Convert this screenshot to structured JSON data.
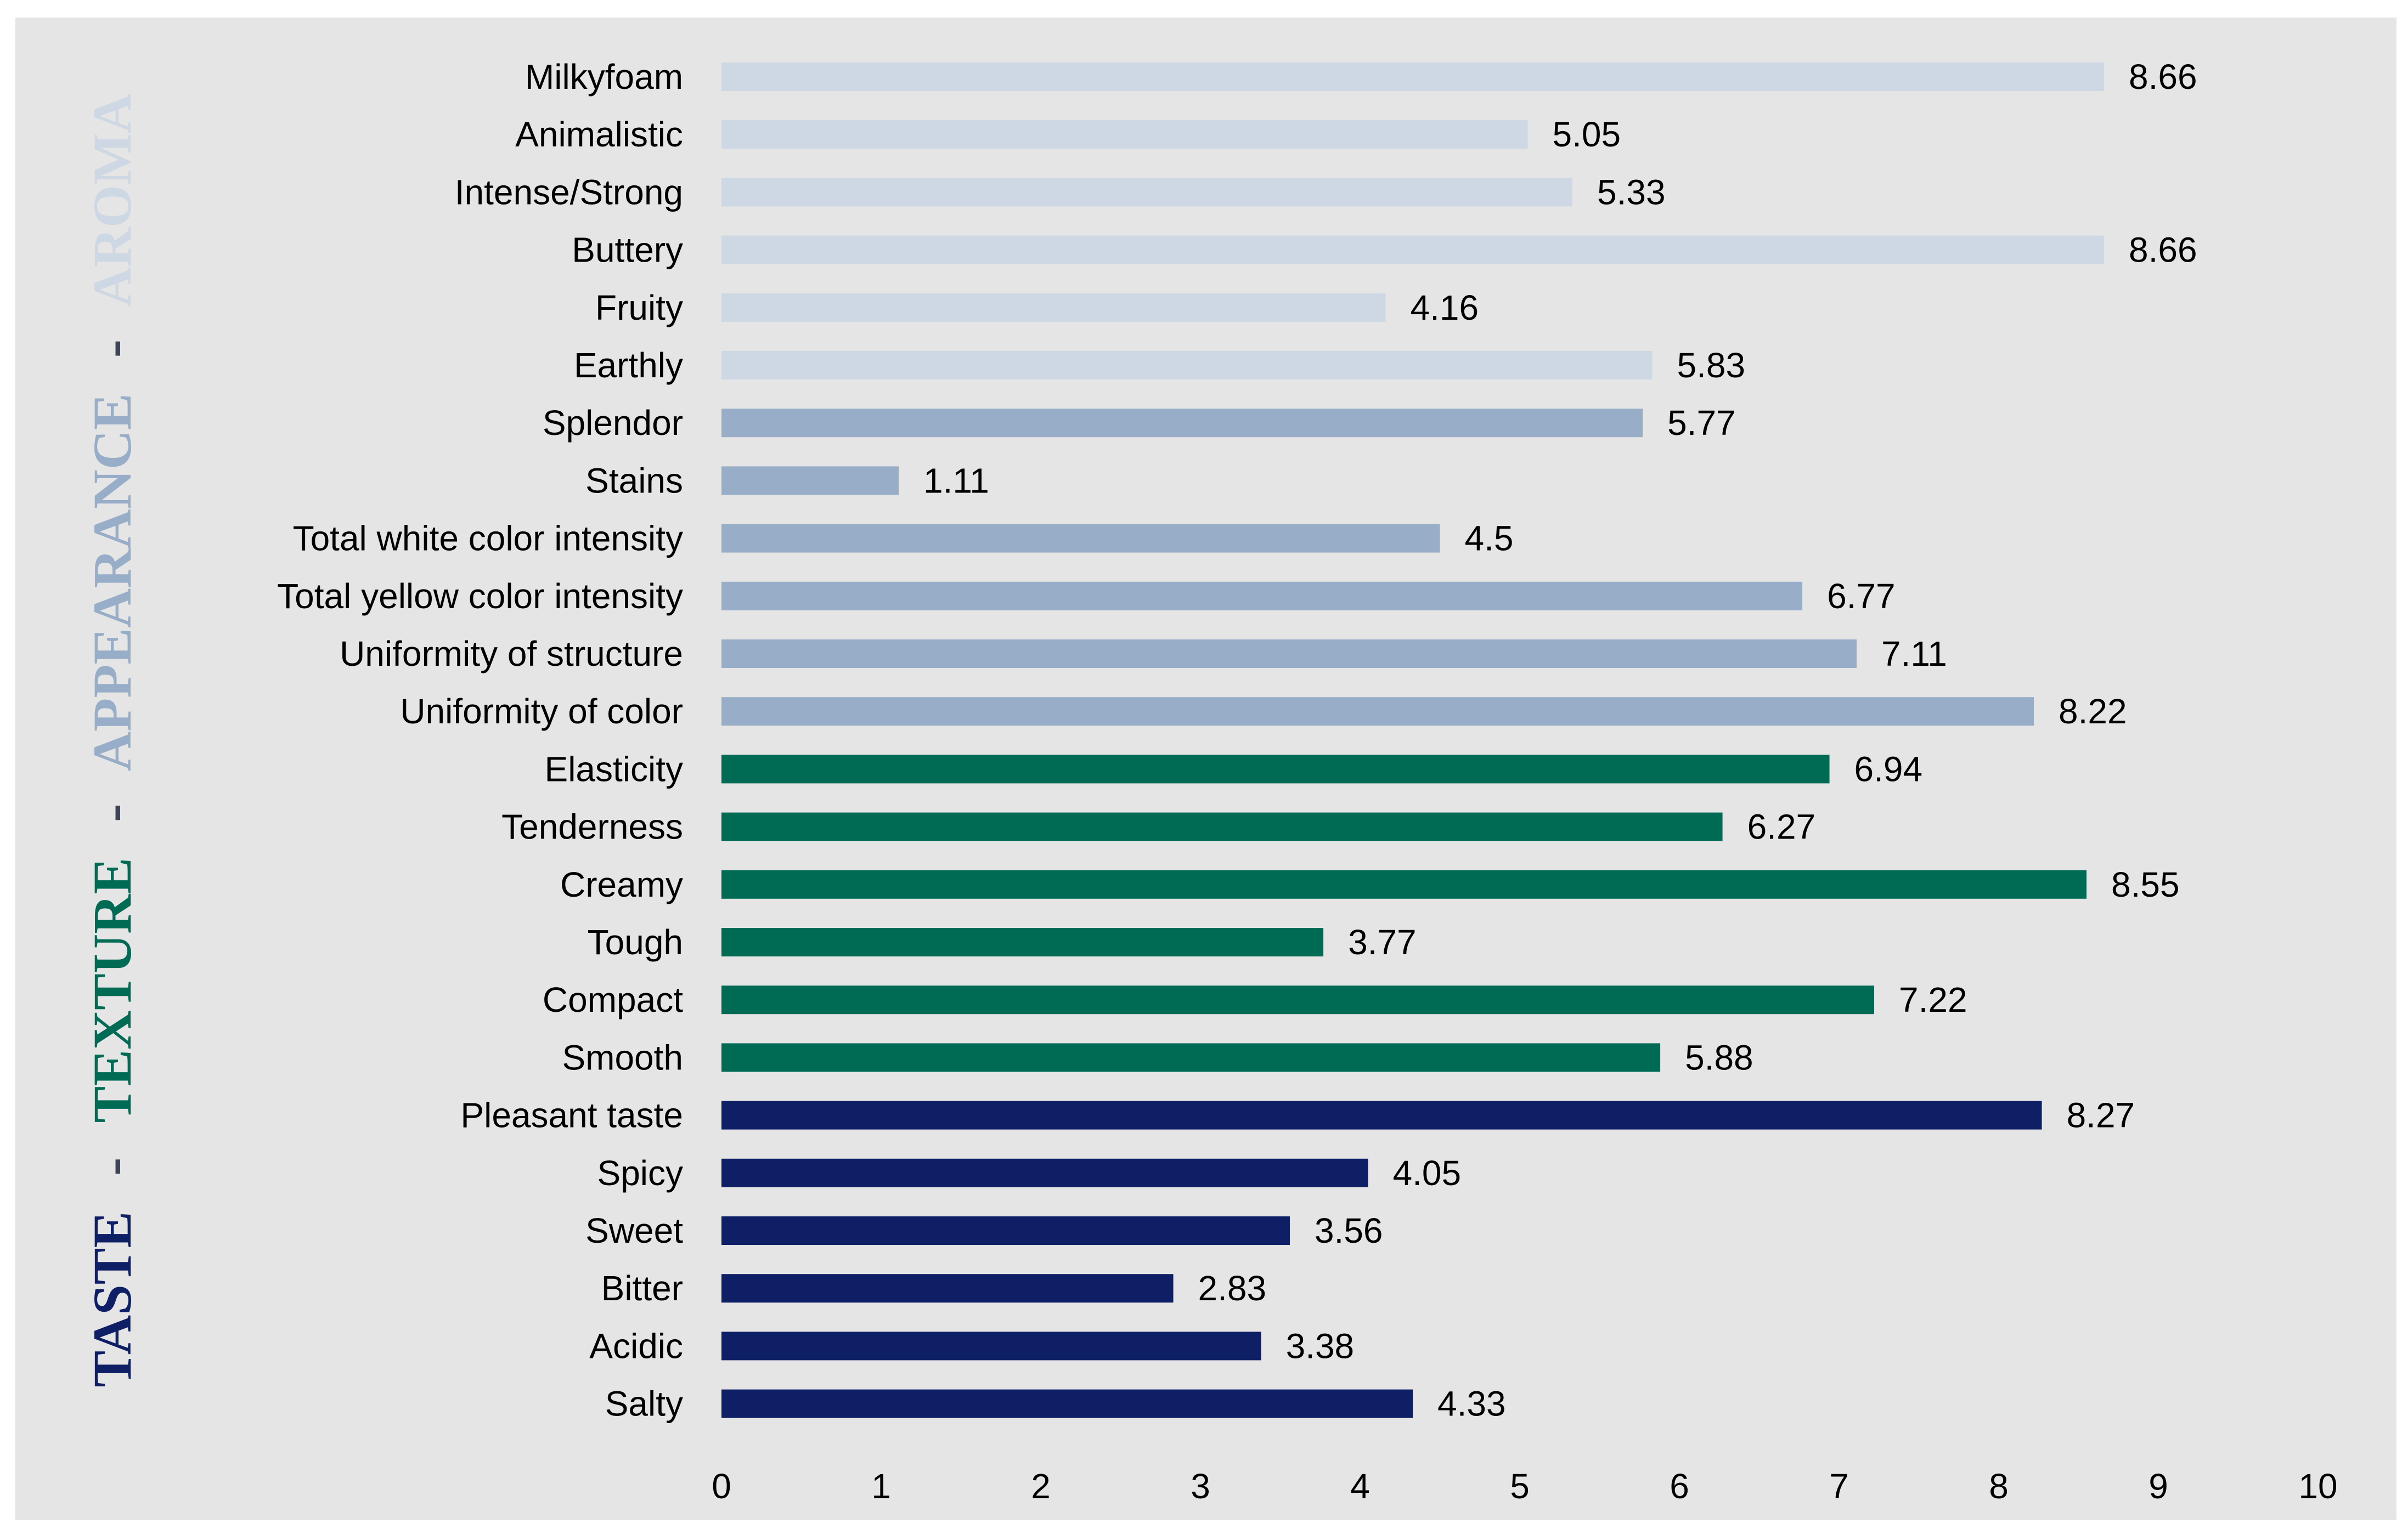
{
  "colors": {
    "plot_background": "#e5e5e5",
    "taste": "#0f1f66",
    "texture": "#006b55",
    "appearance": "#98aec8",
    "aroma": "#cdd8e4",
    "separator": "#3d4555"
  },
  "group_labels": {
    "taste": "TASTE",
    "texture": "TEXTURE",
    "appearance": "APPEARANCE",
    "aroma": "AROMA",
    "separator": "-"
  },
  "chart_data": {
    "type": "bar",
    "orientation": "horizontal",
    "title": "",
    "xlabel": "",
    "ylabel": "TASTE - TEXTURE - APPEARANCE - AROMA",
    "xlim": [
      0,
      10
    ],
    "xticks": [
      0,
      1,
      2,
      3,
      4,
      5,
      6,
      7,
      8,
      9,
      10
    ],
    "grid": false,
    "legend": "none",
    "categories": [
      "Milkyfoam",
      "Animalistic",
      "Intense/Strong",
      "Buttery",
      "Fruity",
      "Earthly",
      "Splendor",
      "Stains",
      "Total white color intensity",
      "Total yellow color intensity",
      "Uniformity of structure",
      "Uniformity of color",
      "Elasticity",
      "Tenderness",
      "Creamy",
      "Tough",
      "Compact",
      "Smooth",
      "Pleasant taste",
      "Spicy",
      "Sweet",
      "Bitter",
      "Acidic",
      "Salty"
    ],
    "values": [
      8.66,
      5.05,
      5.33,
      8.66,
      4.16,
      5.83,
      5.77,
      1.11,
      4.5,
      6.77,
      7.11,
      8.22,
      6.94,
      6.27,
      8.55,
      3.77,
      7.22,
      5.88,
      8.27,
      4.05,
      3.56,
      2.83,
      3.38,
      4.33
    ],
    "value_labels": [
      "8.66",
      "5.05",
      "5.33",
      "8.66",
      "4.16",
      "5.83",
      "5.77",
      "1.11",
      "4.5",
      "6.77",
      "7.11",
      "8.22",
      "6.94",
      "6.27",
      "8.55",
      "3.77",
      "7.22",
      "5.88",
      "8.27",
      "4.05",
      "3.56",
      "2.83",
      "3.38",
      "4.33"
    ],
    "groups": [
      "aroma",
      "aroma",
      "aroma",
      "aroma",
      "aroma",
      "aroma",
      "appearance",
      "appearance",
      "appearance",
      "appearance",
      "appearance",
      "appearance",
      "texture",
      "texture",
      "texture",
      "texture",
      "texture",
      "texture",
      "taste",
      "taste",
      "taste",
      "taste",
      "taste",
      "taste"
    ]
  }
}
